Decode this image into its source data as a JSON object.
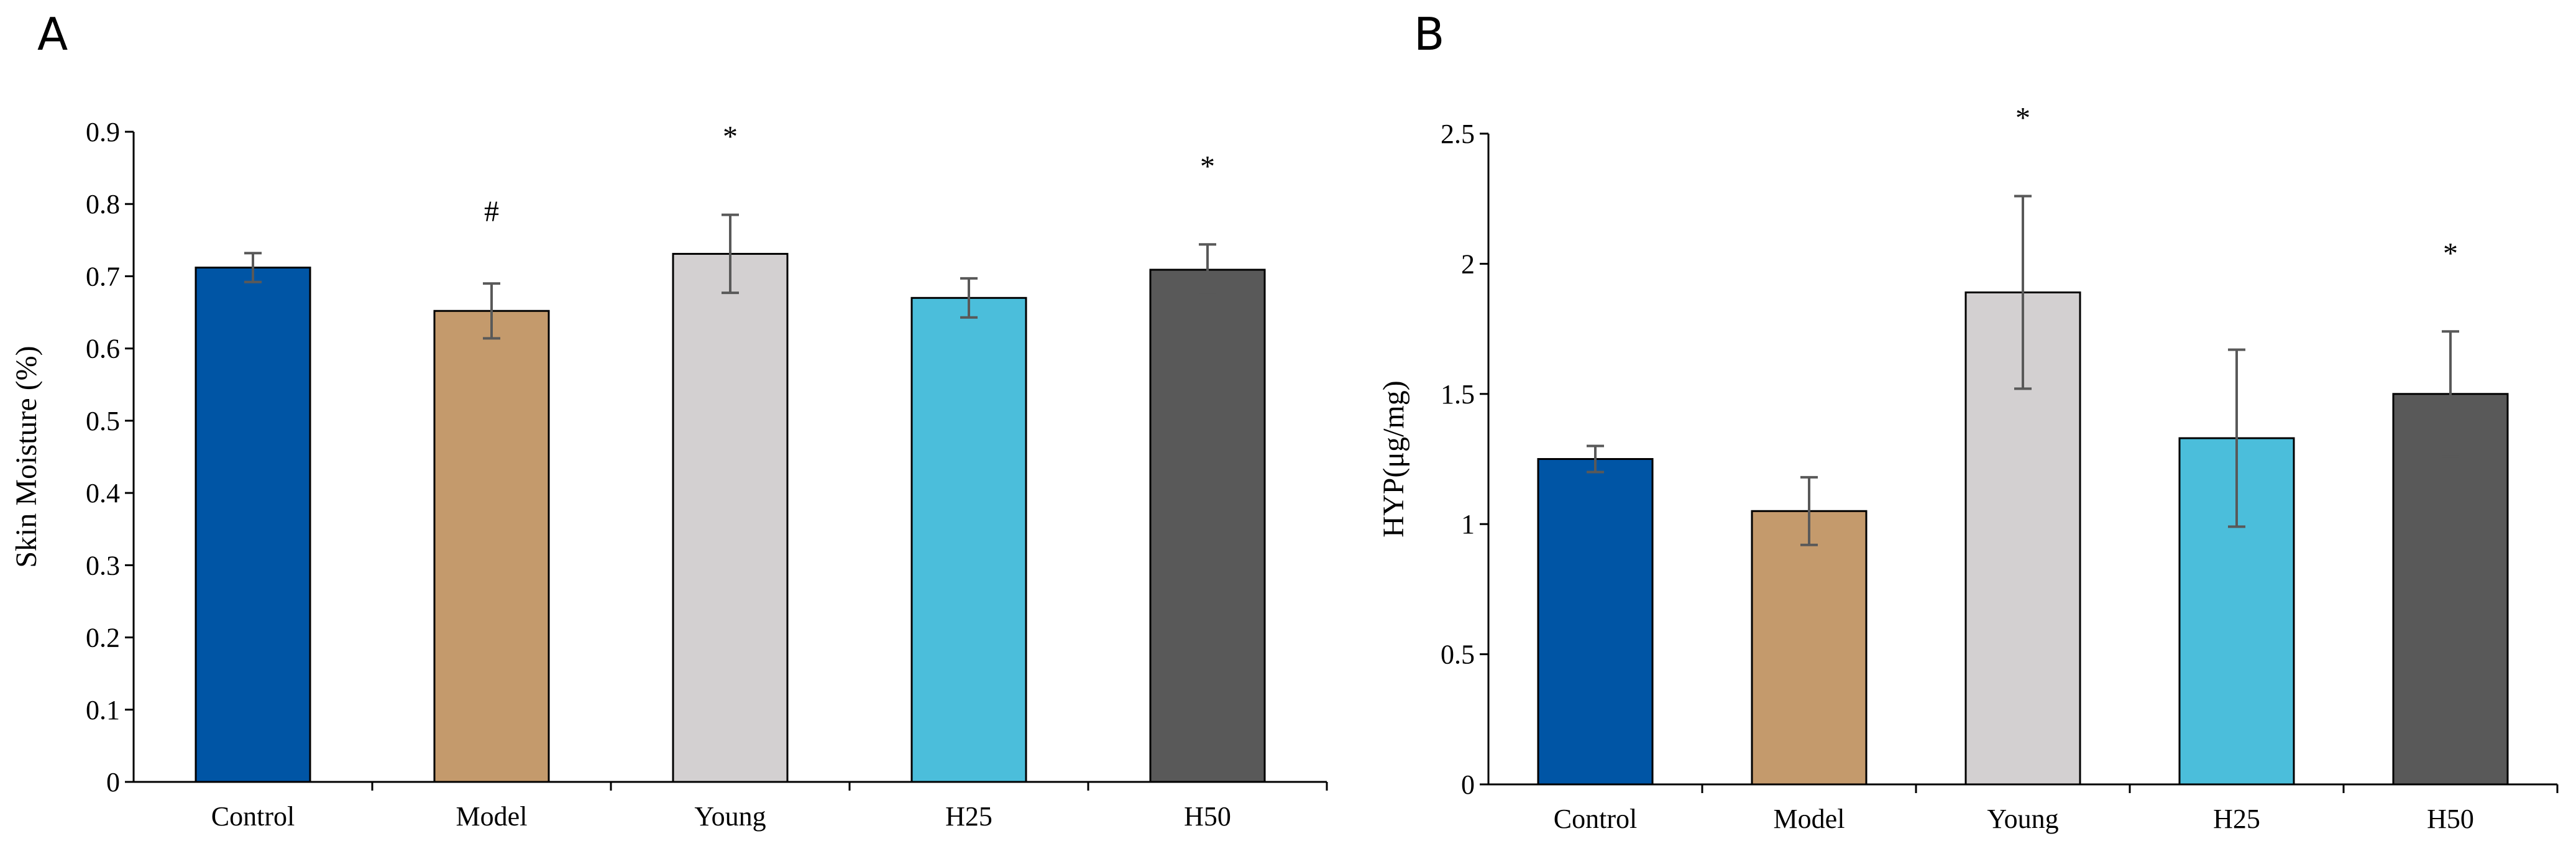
{
  "chart_data": [
    {
      "panel": "A",
      "type": "bar",
      "categories": [
        "Control",
        "Model",
        "Young",
        "H25",
        "H50"
      ],
      "values": [
        0.712,
        0.652,
        0.731,
        0.67,
        0.709
      ],
      "errors": [
        0.02,
        0.038,
        0.054,
        0.027,
        0.035
      ],
      "annotations": [
        "",
        "#",
        "*",
        "",
        "*"
      ],
      "colors": [
        "#0055A5",
        "#C49A6C",
        "#D3D0D1",
        "#4BBEDB",
        "#595959"
      ],
      "ylabel": "Skin Moisture (%)",
      "ylim": [
        0,
        0.9
      ],
      "yticks": [
        "0",
        "0.1",
        "0.2",
        "0.3",
        "0.4",
        "0.5",
        "0.6",
        "0.7",
        "0.8",
        "0.9"
      ],
      "grid": false
    },
    {
      "panel": "B",
      "type": "bar",
      "categories": [
        "Control",
        "Model",
        "Young",
        "H25",
        "H50"
      ],
      "values": [
        1.25,
        1.05,
        1.89,
        1.33,
        1.5
      ],
      "errors": [
        0.05,
        0.13,
        0.37,
        0.34,
        0.24
      ],
      "annotations": [
        "",
        "",
        "*",
        "",
        "*"
      ],
      "colors": [
        "#0055A5",
        "#C49A6C",
        "#D3D0D1",
        "#4BBEDB",
        "#595959"
      ],
      "ylabel": "HYP(μg/mg)",
      "ylim": [
        0,
        2.5
      ],
      "yticks": [
        "0",
        "0.5",
        "1",
        "1.5",
        "2",
        "2.5"
      ],
      "grid": false
    }
  ]
}
